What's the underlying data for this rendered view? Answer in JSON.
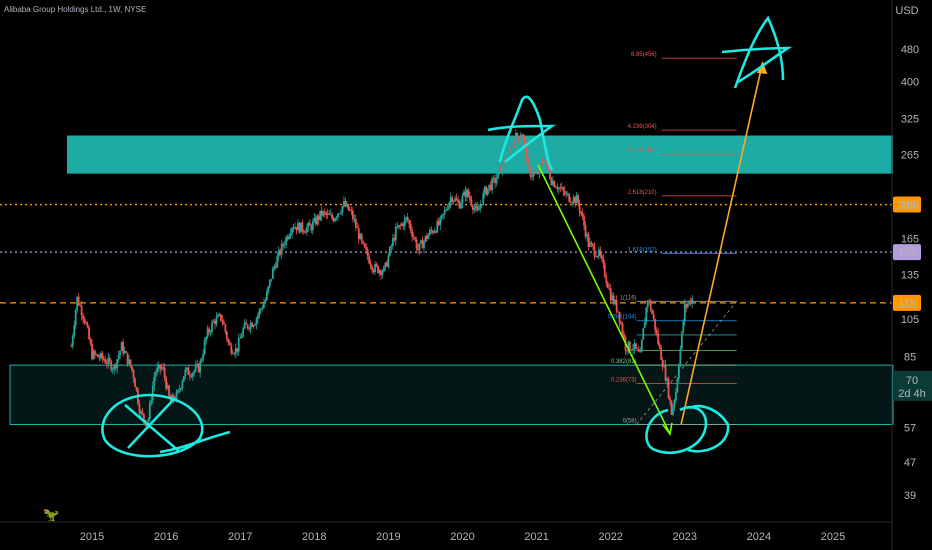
{
  "header": {
    "symbol_title": "Alibaba Group Holdings Ltd., 1W, NYSE",
    "currency": "USD"
  },
  "colors": {
    "background": "#000000",
    "up_candle": "#26a69a",
    "down_candle": "#ef5350",
    "zone_fill": "#1fb4ac",
    "sketch": "#1de9e0",
    "arrow_orange": "#ffa726",
    "line_green": "#76ff03",
    "level_200": "#ff9800",
    "level_153": "#b39ddb",
    "level_115": "#ff9800",
    "price_badge": "#0c3b37",
    "axis_text": "#b2b5be"
  },
  "chart_data": {
    "type": "candlestick",
    "title": "Alibaba Group Holdings Ltd., 1W, NYSE",
    "x_axis": {
      "type": "time",
      "ticks": [
        "2015",
        "2016",
        "2017",
        "2018",
        "2019",
        "2020",
        "2021",
        "2022",
        "2023",
        "2024",
        "2025"
      ]
    },
    "y_axis": {
      "scale": "log",
      "unit": "USD",
      "ticks": [
        39,
        47,
        57,
        70,
        85,
        105,
        135,
        165,
        200,
        265,
        325,
        400,
        480
      ]
    },
    "price_series": [
      [
        2014.72,
        90
      ],
      [
        2014.8,
        118
      ],
      [
        2014.9,
        105
      ],
      [
        2015.0,
        86
      ],
      [
        2015.15,
        84
      ],
      [
        2015.3,
        80
      ],
      [
        2015.4,
        90
      ],
      [
        2015.55,
        78
      ],
      [
        2015.65,
        62
      ],
      [
        2015.75,
        58
      ],
      [
        2015.85,
        78
      ],
      [
        2015.95,
        80
      ],
      [
        2016.05,
        66
      ],
      [
        2016.15,
        68
      ],
      [
        2016.25,
        78
      ],
      [
        2016.35,
        78
      ],
      [
        2016.45,
        80
      ],
      [
        2016.55,
        96
      ],
      [
        2016.65,
        104
      ],
      [
        2016.75,
        106
      ],
      [
        2016.85,
        90
      ],
      [
        2016.95,
        88
      ],
      [
        2017.05,
        100
      ],
      [
        2017.2,
        104
      ],
      [
        2017.35,
        118
      ],
      [
        2017.45,
        140
      ],
      [
        2017.55,
        155
      ],
      [
        2017.7,
        178
      ],
      [
        2017.85,
        175
      ],
      [
        2017.95,
        176
      ],
      [
        2018.1,
        190
      ],
      [
        2018.25,
        185
      ],
      [
        2018.4,
        200
      ],
      [
        2018.5,
        190
      ],
      [
        2018.65,
        158
      ],
      [
        2018.8,
        140
      ],
      [
        2018.95,
        138
      ],
      [
        2019.1,
        172
      ],
      [
        2019.25,
        185
      ],
      [
        2019.4,
        155
      ],
      [
        2019.55,
        170
      ],
      [
        2019.7,
        180
      ],
      [
        2019.85,
        210
      ],
      [
        2019.95,
        200
      ],
      [
        2020.05,
        215
      ],
      [
        2020.2,
        190
      ],
      [
        2020.3,
        215
      ],
      [
        2020.45,
        230
      ],
      [
        2020.6,
        265
      ],
      [
        2020.7,
        290
      ],
      [
        2020.8,
        300
      ],
      [
        2020.9,
        240
      ],
      [
        2021.0,
        235
      ],
      [
        2021.1,
        260
      ],
      [
        2021.2,
        230
      ],
      [
        2021.4,
        210
      ],
      [
        2021.55,
        205
      ],
      [
        2021.7,
        160
      ],
      [
        2021.85,
        150
      ],
      [
        2022.0,
        120
      ],
      [
        2022.1,
        110
      ],
      [
        2022.2,
        90
      ],
      [
        2022.3,
        90
      ],
      [
        2022.4,
        85
      ],
      [
        2022.5,
        118
      ],
      [
        2022.55,
        110
      ],
      [
        2022.65,
        90
      ],
      [
        2022.75,
        75
      ],
      [
        2022.82,
        62
      ],
      [
        2022.88,
        70
      ],
      [
        2022.95,
        92
      ],
      [
        2023.0,
        112
      ],
      [
        2023.1,
        118
      ]
    ],
    "horizontal_levels": [
      {
        "price": 200,
        "label": "200",
        "style": "dotted"
      },
      {
        "price": 153,
        "label": "153",
        "style": "dotted"
      },
      {
        "price": 115,
        "label": "115",
        "style": "dashed"
      }
    ],
    "current_price": {
      "value": "70",
      "countdown": "2d 4h"
    },
    "zones": [
      {
        "x_range": [
          2014.25,
          2026.0
        ],
        "y_range": [
          238,
          295
        ]
      },
      {
        "x_range": [
          2014.25,
          2026.0
        ],
        "y_range": [
          58,
          81
        ]
      }
    ],
    "fib_extension": {
      "x_range": [
        2022.35,
        2023.7
      ],
      "levels": [
        {
          "price": 456,
          "label": "6.85(456)"
        },
        {
          "price": 304,
          "label": "4.236(304)"
        },
        {
          "price": 266,
          "label": "3.618(266)"
        },
        {
          "price": 210,
          "label": "2.618(210)"
        },
        {
          "price": 152,
          "label": "1.618(152)"
        },
        {
          "price": 116,
          "label": "1(116)"
        },
        {
          "price": 104,
          "label": "0.786(104)"
        },
        {
          "price": 96,
          "label": ""
        },
        {
          "price": 88,
          "label": ""
        },
        {
          "price": 81,
          "label": "0.382(81)"
        },
        {
          "price": 73,
          "label": "0.236(73)"
        },
        {
          "price": 58,
          "label": "0(58)"
        }
      ]
    }
  }
}
